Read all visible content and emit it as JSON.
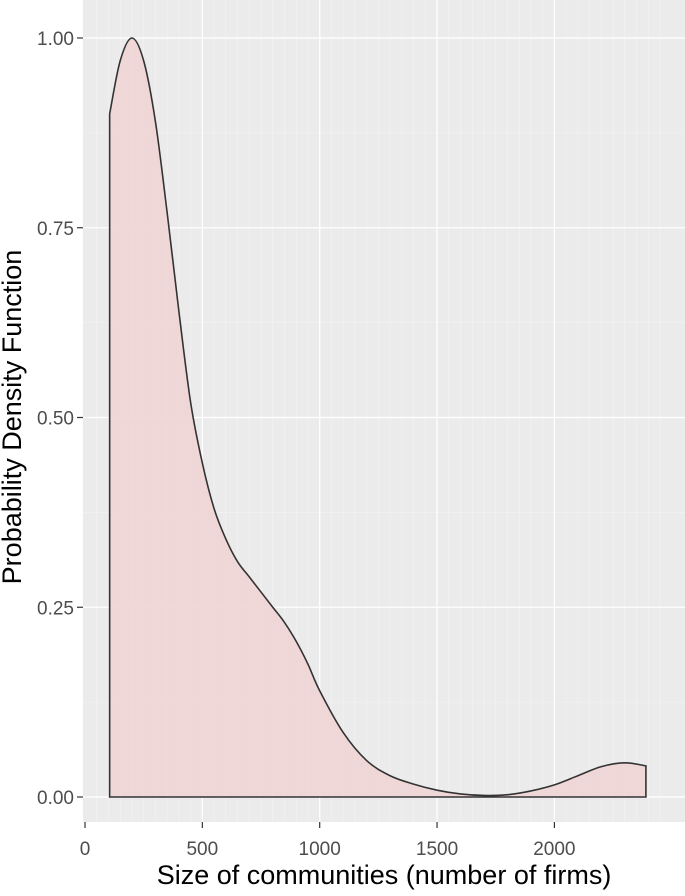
{
  "chart_data": {
    "type": "area",
    "title": "",
    "xlabel": "Size of communities (number of firms)",
    "ylabel": "Probability Density Function",
    "xlim": [
      0,
      2450
    ],
    "ylim": [
      -0.03,
      1.04
    ],
    "x_ticks": [
      0,
      500,
      1000,
      1500,
      2000
    ],
    "x_tick_labels": [
      "0",
      "500",
      "1000",
      "1500",
      "2000"
    ],
    "y_ticks": [
      0,
      0.25,
      0.5,
      0.75,
      1.0
    ],
    "y_tick_labels": [
      "0.00",
      "0.25",
      "0.50",
      "0.75",
      "1.00"
    ],
    "grid": true,
    "colors": {
      "panel_background": "#ebebeb",
      "grid_major": "#ffffff",
      "grid_minor": "#f4f4f4",
      "fill": "#f0d6d6",
      "line": "#333333"
    },
    "series": [
      {
        "x": [
          105,
          150,
          200,
          250,
          300,
          350,
          400,
          450,
          500,
          550,
          600,
          650,
          700,
          750,
          800,
          850,
          900,
          950,
          1000,
          1100,
          1200,
          1300,
          1400,
          1500,
          1600,
          1700,
          1800,
          1900,
          2000,
          2100,
          2200,
          2300,
          2390
        ],
        "y": [
          0.9,
          0.97,
          1.0,
          0.97,
          0.89,
          0.77,
          0.64,
          0.52,
          0.44,
          0.38,
          0.34,
          0.31,
          0.29,
          0.27,
          0.25,
          0.23,
          0.205,
          0.175,
          0.14,
          0.085,
          0.048,
          0.028,
          0.017,
          0.009,
          0.004,
          0.002,
          0.003,
          0.008,
          0.016,
          0.028,
          0.04,
          0.045,
          0.041
        ]
      }
    ]
  }
}
